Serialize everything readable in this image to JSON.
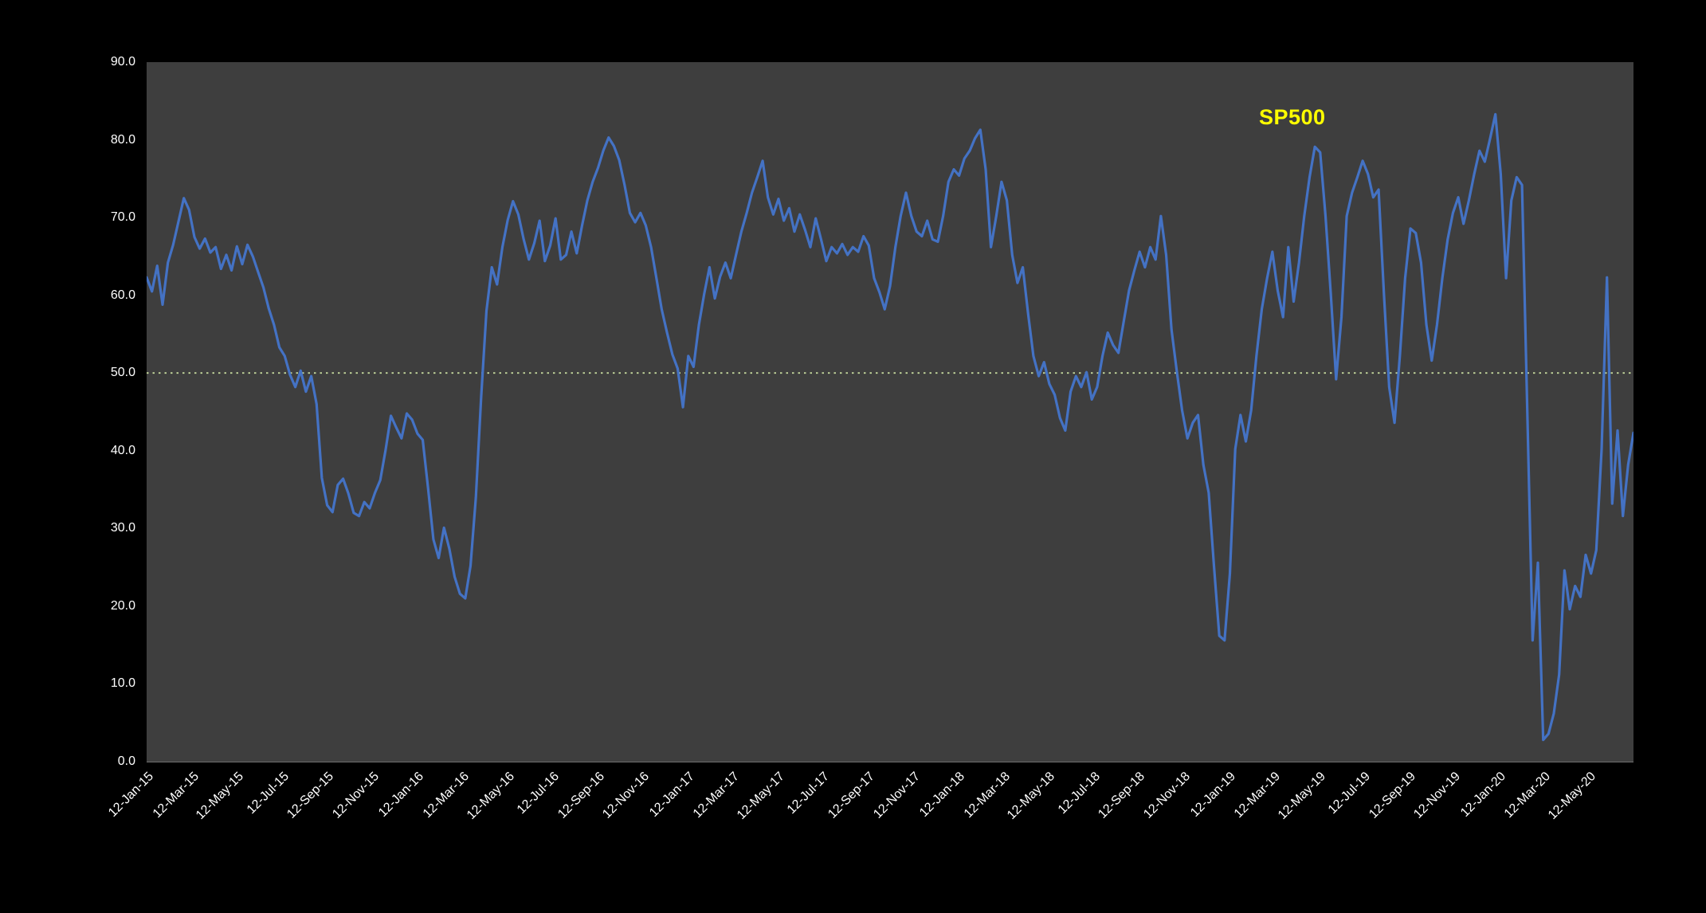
{
  "chart_data": {
    "type": "line",
    "title": "",
    "legend_position": "none",
    "grid": false,
    "ylim": [
      0,
      90
    ],
    "series": [
      {
        "name": "SP500",
        "color": "#4472C4",
        "values": [
          62.3,
          60.5,
          63.8,
          58.8,
          64.2,
          66.5,
          69.5,
          72.5,
          71.0,
          67.5,
          66.0,
          67.3,
          65.5,
          66.2,
          63.4,
          65.2,
          63.2,
          66.3,
          64.0,
          66.5,
          65.0,
          63.0,
          61.0,
          58.3,
          56.2,
          53.3,
          52.2,
          49.8,
          48.2,
          50.3,
          47.6,
          49.6,
          46.0,
          36.5,
          33.0,
          32.1,
          35.6,
          36.4,
          34.5,
          32.0,
          31.6,
          33.4,
          32.6,
          34.6,
          36.2,
          40.1,
          44.5,
          43.0,
          41.6,
          44.8,
          44.0,
          42.2,
          41.4,
          35.2,
          28.6,
          26.2,
          30.1,
          27.4,
          23.8,
          21.6,
          21.0,
          25.2,
          34.0,
          47.0,
          58.0,
          63.6,
          61.4,
          66.2,
          69.7,
          72.1,
          70.4,
          67.2,
          64.6,
          66.7,
          69.6,
          64.4,
          66.4,
          69.9,
          64.6,
          65.2,
          68.2,
          65.4,
          69.0,
          72.2,
          74.6,
          76.4,
          78.6,
          80.3,
          79.2,
          77.4,
          74.2,
          70.6,
          69.4,
          70.6,
          69.0,
          66.2,
          62.2,
          58.2,
          55.2,
          52.4,
          50.6,
          45.6,
          52.2,
          50.8,
          56.2,
          60.2,
          63.6,
          59.6,
          62.4,
          64.2,
          62.2,
          65.2,
          68.2,
          70.6,
          73.2,
          75.2,
          77.3,
          72.6,
          70.4,
          72.4,
          69.6,
          71.2,
          68.2,
          70.4,
          68.4,
          66.2,
          69.9,
          67.2,
          64.4,
          66.2,
          65.4,
          66.6,
          65.2,
          66.2,
          65.6,
          67.6,
          66.4,
          62.2,
          60.4,
          58.2,
          61.2,
          66.2,
          70.2,
          73.2,
          70.2,
          68.2,
          67.6,
          69.6,
          67.2,
          66.9,
          70.2,
          74.6,
          76.2,
          75.4,
          77.6,
          78.6,
          80.2,
          81.3,
          76.2,
          66.2,
          70.2,
          74.6,
          72.2,
          65.2,
          61.6,
          63.6,
          57.6,
          52.2,
          49.6,
          51.4,
          48.6,
          47.2,
          44.2,
          42.6,
          47.6,
          49.6,
          48.2,
          50.1,
          46.6,
          48.2,
          52.2,
          55.2,
          53.6,
          52.6,
          56.6,
          60.6,
          63.2,
          65.6,
          63.6,
          66.2,
          64.6,
          70.2,
          65.2,
          55.6,
          50.2,
          45.2,
          41.6,
          43.6,
          44.6,
          38.2,
          34.6,
          25.2,
          16.2,
          15.6,
          24.2,
          40.2,
          44.6,
          41.2,
          45.2,
          52.2,
          58.2,
          62.2,
          65.6,
          60.6,
          57.2,
          66.2,
          59.2,
          64.2,
          70.2,
          75.2,
          79.1,
          78.4,
          70.2,
          60.2,
          49.2,
          57.2,
          70.2,
          73.2,
          75.2,
          77.3,
          75.6,
          72.6,
          73.6,
          60.2,
          48.2,
          43.6,
          52.2,
          62.2,
          68.6,
          68.0,
          64.2,
          56.2,
          51.6,
          56.2,
          62.2,
          67.2,
          70.6,
          72.6,
          69.2,
          72.2,
          75.6,
          78.6,
          77.2,
          80.2,
          83.3,
          75.6,
          62.2,
          72.2,
          75.2,
          74.2,
          45.2,
          15.6,
          25.6,
          2.8,
          3.6,
          6.2,
          11.2,
          24.6,
          19.6,
          22.6,
          21.2,
          26.6,
          24.2,
          27.2,
          40.2,
          62.3,
          33.2,
          42.6,
          31.6,
          38.2,
          42.3
        ]
      }
    ],
    "x_tick_labels": [
      "12-Jan-15",
      "12-Mar-15",
      "12-May-15",
      "12-Jul-15",
      "12-Sep-15",
      "12-Nov-15",
      "12-Jan-16",
      "12-Mar-16",
      "12-May-16",
      "12-Jul-16",
      "12-Sep-16",
      "12-Nov-16",
      "12-Jan-17",
      "12-Mar-17",
      "12-May-17",
      "12-Jul-17",
      "12-Sep-17",
      "12-Nov-17",
      "12-Jan-18",
      "12-Mar-18",
      "12-May-18",
      "12-Jul-18",
      "12-Sep-18",
      "12-Nov-18",
      "12-Jan-19",
      "12-Mar-19",
      "12-May-19",
      "12-Jul-19",
      "12-Sep-19",
      "12-Nov-19",
      "12-Jan-20",
      "12-Mar-20",
      "12-May-20"
    ],
    "y_tick_values": [
      90,
      80,
      70,
      60,
      50,
      40,
      30,
      20,
      10,
      0
    ],
    "y_tick_labels": [
      "90.0",
      "80.0",
      "70.0",
      "60.0",
      "50.0",
      "40.0",
      "30.0",
      "20.0",
      "10.0",
      "0.0"
    ],
    "reference_line": {
      "value": 50.0,
      "color": "#C4D79B",
      "style": "dotted"
    },
    "annotation": {
      "text": "SP500",
      "color": "#FFFF00"
    },
    "colors": {
      "page_bg": "#000000",
      "plot_bg": "#3E3E3E",
      "axis_text": "#FFFFFF",
      "line": "#4472C4"
    }
  }
}
